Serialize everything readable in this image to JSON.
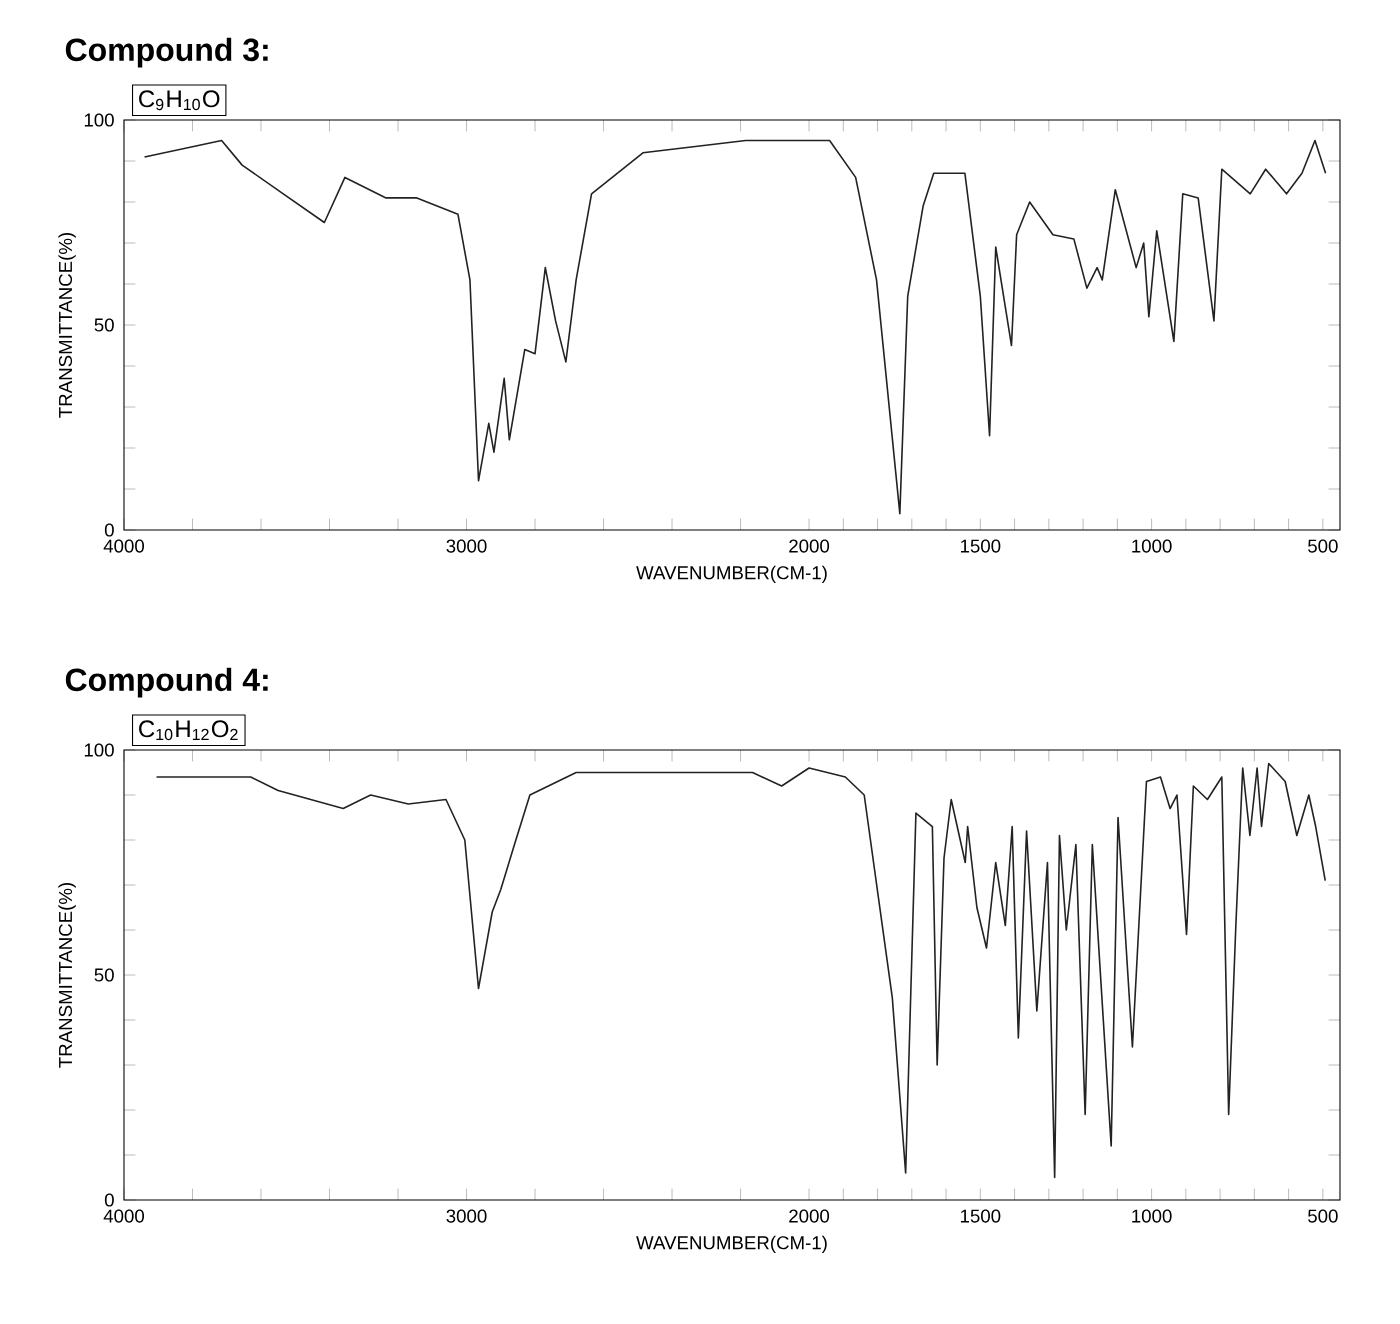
{
  "chart_data": [
    {
      "type": "line",
      "title": "Compound 3:",
      "subtitle": "C$_{9}$H$_{10}$O",
      "xlabel": "WAVENUMBER(CM-1)",
      "ylabel": "TRANSMITTANCE(%)",
      "x": [
        3940,
        3715,
        3655,
        3535,
        3415,
        3355,
        3235,
        3145,
        3025,
        2990,
        2965,
        2935,
        2920,
        2890,
        2875,
        2830,
        2800,
        2770,
        2740,
        2710,
        2680,
        2635,
        2485,
        2185,
        1940,
        1864,
        1803,
        1735,
        1712,
        1667,
        1636,
        1545,
        1500,
        1473,
        1455,
        1409,
        1394,
        1356,
        1288,
        1227,
        1189,
        1159,
        1144,
        1106,
        1045,
        1023,
        1008,
        985,
        935,
        909,
        864,
        818,
        795,
        712,
        667,
        606,
        561,
        523,
        492
      ],
      "series": [
        {
          "color": "#222222",
          "values": [
            91,
            95,
            89,
            82,
            75,
            86,
            81,
            81,
            77,
            61,
            12,
            26,
            19,
            37,
            22,
            44,
            43,
            64,
            51,
            41,
            61,
            82,
            92,
            95,
            95,
            86,
            61,
            4,
            57,
            79,
            87,
            87,
            57,
            23,
            69,
            45,
            72,
            80,
            72,
            71,
            59,
            64,
            61,
            83,
            64,
            70,
            52,
            73,
            46,
            82,
            81,
            51,
            88,
            82,
            88,
            82,
            87,
            95,
            87
          ]
        }
      ],
      "xlim": [
        4000,
        450
      ],
      "xticks": [
        4000,
        {
          "value": 3800,
          "label": null
        },
        {
          "value": 3600,
          "label": null
        },
        {
          "value": 3400,
          "label": null
        },
        {
          "value": 3200,
          "label": null
        },
        3000,
        {
          "value": 2800,
          "label": null
        },
        {
          "value": 2600,
          "label": null
        },
        {
          "value": 2400,
          "label": null
        },
        {
          "value": 2200,
          "label": null
        },
        2000,
        {
          "value": 1900,
          "label": null
        },
        {
          "value": 1800,
          "label": null
        },
        {
          "value": 1700,
          "label": null
        },
        {
          "value": 1600,
          "label": null
        },
        1500,
        {
          "value": 1400,
          "label": null
        },
        {
          "value": 1300,
          "label": null
        },
        {
          "value": 1200,
          "label": null
        },
        {
          "value": 1100,
          "label": null
        },
        1000,
        {
          "value": 900,
          "label": null
        },
        {
          "value": 800,
          "label": null
        },
        {
          "value": 700,
          "label": null
        },
        {
          "value": 600,
          "label": null
        },
        500
      ],
      "ylim": [
        0,
        100
      ],
      "yticks": [
        0,
        {
          "value": 10,
          "label": null
        },
        {
          "value": 20,
          "label": null
        },
        {
          "value": 30,
          "label": null
        },
        {
          "value": 40,
          "label": null
        },
        50,
        {
          "value": 60,
          "label": null
        },
        {
          "value": 70,
          "label": null
        },
        {
          "value": 80,
          "label": null
        },
        {
          "value": 90,
          "label": null
        },
        100
      ]
    },
    {
      "type": "line",
      "title": "Compound 4:",
      "subtitle": "C$_{10}$H$_{12}$O$_{2}$",
      "xlabel": "WAVENUMBER(CM-1)",
      "ylabel": "TRANSMITTANCE(%)",
      "x": [
        3905,
        3630,
        3550,
        3360,
        3280,
        3170,
        3060,
        3005,
        2965,
        2925,
        2900,
        2860,
        2815,
        2680,
        2355,
        2165,
        2080,
        2000,
        1894,
        1839,
        1757,
        1718,
        1688,
        1640,
        1626,
        1606,
        1585,
        1544,
        1537,
        1510,
        1482,
        1455,
        1427,
        1407,
        1389,
        1365,
        1335,
        1304,
        1283,
        1269,
        1249,
        1221,
        1194,
        1173,
        1118,
        1098,
        1056,
        1015,
        974,
        946,
        926,
        898,
        878,
        837,
        795,
        775,
        754,
        734,
        713,
        692,
        679,
        658,
        610,
        576,
        541,
        521,
        493
      ],
      "series": [
        {
          "color": "#222222",
          "values": [
            94,
            94,
            91,
            87,
            90,
            88,
            89,
            80,
            47,
            64,
            69,
            79,
            90,
            95,
            95,
            95,
            92,
            96,
            94,
            90,
            45,
            6,
            86,
            83,
            30,
            76,
            89,
            75,
            83,
            65,
            56,
            75,
            61,
            83,
            36,
            82,
            42,
            75,
            5,
            81,
            60,
            79,
            19,
            79,
            12,
            85,
            34,
            93,
            94,
            87,
            90,
            59,
            92,
            89,
            94,
            19,
            61,
            96,
            81,
            96,
            83,
            97,
            93,
            81,
            90,
            83,
            71
          ]
        }
      ],
      "xlim": [
        4000,
        450
      ],
      "xticks": [
        4000,
        {
          "value": 3800,
          "label": null
        },
        {
          "value": 3600,
          "label": null
        },
        {
          "value": 3400,
          "label": null
        },
        {
          "value": 3200,
          "label": null
        },
        3000,
        {
          "value": 2800,
          "label": null
        },
        {
          "value": 2600,
          "label": null
        },
        {
          "value": 2400,
          "label": null
        },
        {
          "value": 2200,
          "label": null
        },
        2000,
        {
          "value": 1900,
          "label": null
        },
        {
          "value": 1800,
          "label": null
        },
        {
          "value": 1700,
          "label": null
        },
        {
          "value": 1600,
          "label": null
        },
        1500,
        {
          "value": 1400,
          "label": null
        },
        {
          "value": 1300,
          "label": null
        },
        {
          "value": 1200,
          "label": null
        },
        {
          "value": 1100,
          "label": null
        },
        1000,
        {
          "value": 900,
          "label": null
        },
        {
          "value": 800,
          "label": null
        },
        {
          "value": 700,
          "label": null
        },
        {
          "value": 600,
          "label": null
        },
        500
      ],
      "ylim": [
        0,
        100
      ],
      "yticks": [
        0,
        {
          "value": 10,
          "label": null
        },
        {
          "value": 20,
          "label": null
        },
        {
          "value": 30,
          "label": null
        },
        {
          "value": 40,
          "label": null
        },
        50,
        {
          "value": 60,
          "label": null
        },
        {
          "value": 70,
          "label": null
        },
        {
          "value": 80,
          "label": null
        },
        {
          "value": 90,
          "label": null
        },
        100
      ]
    }
  ]
}
